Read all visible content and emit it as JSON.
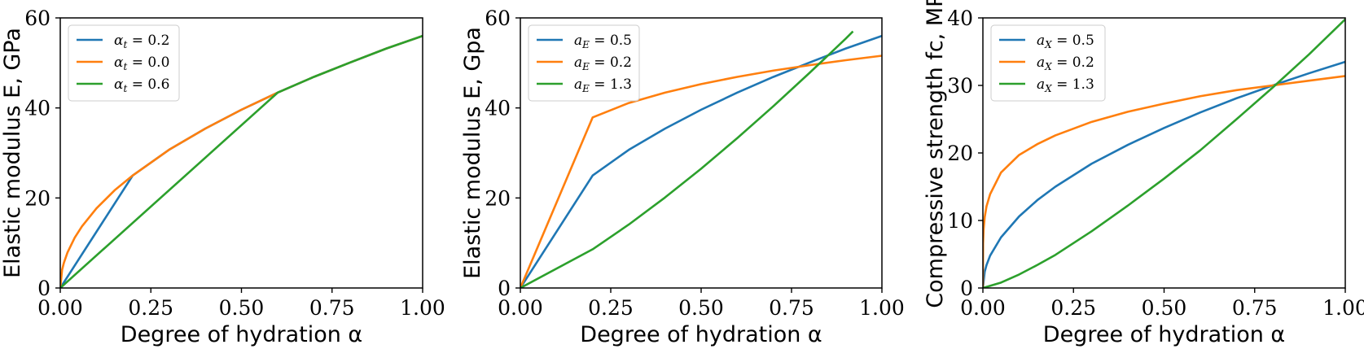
{
  "chart_data": [
    {
      "type": "line",
      "xlabel": "Degree of hydration α",
      "ylabel": "Elastic modulus E, GPa",
      "xlim": [
        0,
        1
      ],
      "ylim": [
        0,
        60
      ],
      "xticks": [
        "0.00",
        "0.25",
        "0.50",
        "0.75",
        "1.00"
      ],
      "yticks": [
        "0",
        "20",
        "40",
        "60"
      ],
      "grid": false,
      "legend": "top-left",
      "series": [
        {
          "name": "αt = 0.2",
          "color": "#1f77b4",
          "x": [
            0,
            0.2,
            0.3,
            0.4,
            0.5,
            0.6,
            0.7,
            0.8,
            0.9,
            1.0
          ],
          "y": [
            0,
            25.0,
            30.7,
            35.4,
            39.6,
            43.4,
            46.9,
            50.1,
            53.2,
            56.0
          ]
        },
        {
          "name": "αt = 0.0",
          "color": "#ff7f0e",
          "x": [
            0,
            0.005,
            0.01,
            0.02,
            0.04,
            0.06,
            0.1,
            0.15,
            0.2,
            0.3,
            0.4,
            0.5,
            0.6,
            0.7,
            0.8,
            0.9,
            1.0
          ],
          "y": [
            0,
            4.0,
            5.6,
            7.9,
            11.2,
            13.7,
            17.7,
            21.7,
            25.0,
            30.7,
            35.4,
            39.6,
            43.4,
            46.9,
            50.1,
            53.2,
            56.0
          ]
        },
        {
          "name": "αt = 0.6",
          "color": "#2ca02c",
          "x": [
            0,
            0.6,
            0.7,
            0.8,
            0.9,
            1.0
          ],
          "y": [
            0,
            43.4,
            46.9,
            50.1,
            53.2,
            56.0
          ]
        }
      ]
    },
    {
      "type": "line",
      "xlabel": "Degree of hydration α",
      "ylabel": "Elastic modulus E, Gpa",
      "xlim": [
        0,
        1
      ],
      "ylim": [
        0,
        60
      ],
      "xticks": [
        "0.00",
        "0.25",
        "0.50",
        "0.75",
        "1.00"
      ],
      "yticks": [
        "0",
        "20",
        "40",
        "60"
      ],
      "grid": false,
      "legend": "top-left",
      "series": [
        {
          "name": "aE = 0.5",
          "color": "#1f77b4",
          "x": [
            0,
            0.2,
            0.3,
            0.4,
            0.5,
            0.6,
            0.7,
            0.8,
            0.9,
            1.0
          ],
          "y": [
            0,
            25.0,
            30.7,
            35.4,
            39.6,
            43.4,
            46.9,
            50.1,
            53.2,
            56.0
          ]
        },
        {
          "name": "aE = 0.2",
          "color": "#ff7f0e",
          "x": [
            0,
            0.2,
            0.3,
            0.4,
            0.5,
            0.6,
            0.7,
            0.8,
            0.9,
            1.0
          ],
          "y": [
            0,
            37.9,
            41.1,
            43.4,
            45.3,
            46.9,
            48.3,
            49.5,
            50.6,
            51.6
          ]
        },
        {
          "name": "aE = 1.3",
          "color": "#2ca02c",
          "x": [
            0,
            0.2,
            0.3,
            0.4,
            0.5,
            0.6,
            0.7,
            0.8,
            0.9,
            0.92
          ],
          "y": [
            0,
            8.6,
            14.1,
            20.1,
            26.5,
            33.3,
            40.4,
            47.8,
            55.4,
            57.0
          ]
        }
      ]
    },
    {
      "type": "line",
      "xlabel": "Degree of hydration α",
      "ylabel": "Compressive strength fc, MPa",
      "xlim": [
        0,
        1
      ],
      "ylim": [
        0,
        40
      ],
      "xticks": [
        "0.00",
        "0.25",
        "0.50",
        "0.75",
        "1.00"
      ],
      "yticks": [
        "0",
        "10",
        "20",
        "30",
        "40"
      ],
      "grid": false,
      "legend": "top-left",
      "series": [
        {
          "name": "aX = 0.5",
          "color": "#1f77b4",
          "x": [
            0,
            0.005,
            0.01,
            0.02,
            0.05,
            0.1,
            0.15,
            0.2,
            0.3,
            0.4,
            0.5,
            0.6,
            0.7,
            0.8,
            0.9,
            1.0
          ],
          "y": [
            0,
            2.4,
            3.4,
            4.8,
            7.5,
            10.6,
            13.0,
            15.0,
            18.4,
            21.2,
            23.7,
            26.0,
            28.1,
            30.0,
            31.8,
            33.5
          ]
        },
        {
          "name": "aX = 0.2",
          "color": "#ff7f0e",
          "x": [
            0,
            0.0005,
            0.002,
            0.005,
            0.01,
            0.02,
            0.05,
            0.1,
            0.15,
            0.2,
            0.3,
            0.4,
            0.5,
            0.6,
            0.7,
            0.8,
            0.9,
            1.0
          ],
          "y": [
            0,
            6.6,
            8.7,
            10.5,
            12.1,
            13.9,
            17.1,
            19.7,
            21.3,
            22.6,
            24.6,
            26.1,
            27.3,
            28.4,
            29.3,
            30.0,
            30.7,
            31.4
          ]
        },
        {
          "name": "aX = 1.3",
          "color": "#2ca02c",
          "x": [
            0,
            0.05,
            0.1,
            0.15,
            0.2,
            0.3,
            0.4,
            0.5,
            0.6,
            0.7,
            0.8,
            0.9,
            1.0
          ],
          "y": [
            0,
            0.8,
            2.0,
            3.4,
            4.9,
            8.4,
            12.2,
            16.2,
            20.4,
            25.0,
            29.7,
            34.6,
            39.8
          ]
        }
      ]
    }
  ]
}
